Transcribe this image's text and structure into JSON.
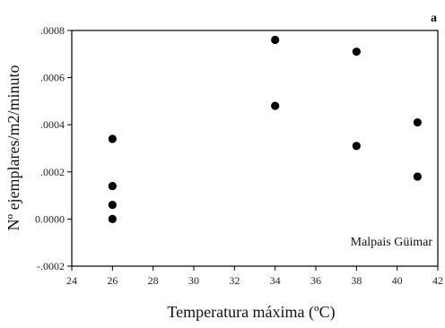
{
  "chart_data": {
    "type": "scatter",
    "panel_label": "a",
    "xlabel": "Temperatura máxima (ºC)",
    "ylabel": "Nº ejemplares/m2/minuto",
    "annotation": "Malpais Güimar",
    "xlim": [
      24,
      42
    ],
    "ylim": [
      -0.0002,
      0.0008
    ],
    "xticks": [
      "24",
      "26",
      "28",
      "30",
      "32",
      "34",
      "36",
      "38",
      "40",
      "42"
    ],
    "yticks": [
      ".0008",
      ".0006",
      ".0004",
      ".0002",
      "0.0000",
      "-.0002"
    ],
    "grid": false,
    "points": [
      {
        "x": 26,
        "y": 0.00034
      },
      {
        "x": 26,
        "y": 0.00014
      },
      {
        "x": 26,
        "y": 6e-05
      },
      {
        "x": 26,
        "y": 0.0
      },
      {
        "x": 34,
        "y": 0.00076
      },
      {
        "x": 34,
        "y": 0.00048
      },
      {
        "x": 38,
        "y": 0.00071
      },
      {
        "x": 38,
        "y": 0.00031
      },
      {
        "x": 41,
        "y": 0.00041
      },
      {
        "x": 41,
        "y": 0.00018
      }
    ]
  }
}
